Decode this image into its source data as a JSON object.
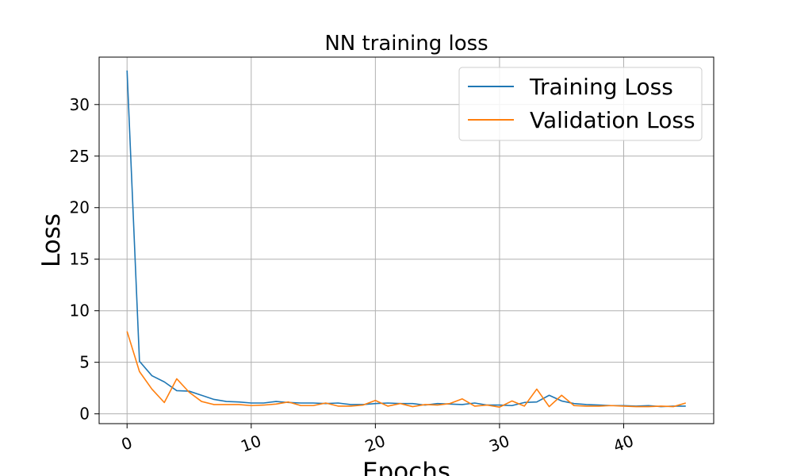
{
  "chart_data": {
    "type": "line",
    "title": "NN training loss",
    "xlabel": "Epochs",
    "ylabel": "Loss",
    "xlim": [
      -2.25,
      47.25
    ],
    "ylim": [
      -0.95,
      34.6
    ],
    "xticks": [
      0,
      10,
      20,
      30,
      40
    ],
    "yticks": [
      0,
      5,
      10,
      15,
      20,
      25,
      30
    ],
    "grid": true,
    "legend_position": "top-right",
    "x": [
      0,
      1,
      2,
      3,
      4,
      5,
      6,
      7,
      8,
      9,
      10,
      11,
      12,
      13,
      14,
      15,
      16,
      17,
      18,
      19,
      20,
      21,
      22,
      23,
      24,
      25,
      26,
      27,
      28,
      29,
      30,
      31,
      32,
      33,
      34,
      35,
      36,
      37,
      38,
      39,
      40,
      41,
      42,
      43,
      44,
      45
    ],
    "series": [
      {
        "name": "Training Loss",
        "color": "#1f77b4",
        "values": [
          33.3,
          5.1,
          3.7,
          3.1,
          2.25,
          2.2,
          1.8,
          1.4,
          1.2,
          1.15,
          1.05,
          1.05,
          1.2,
          1.1,
          1.05,
          1.05,
          1.0,
          1.05,
          0.9,
          0.9,
          1.0,
          1.05,
          1.0,
          1.0,
          0.85,
          1.0,
          0.95,
          0.9,
          1.05,
          0.85,
          0.85,
          0.8,
          1.1,
          1.15,
          1.8,
          1.25,
          1.0,
          0.9,
          0.85,
          0.8,
          0.8,
          0.75,
          0.8,
          0.7,
          0.75,
          0.75
        ]
      },
      {
        "name": "Validation Loss",
        "color": "#ff7f0e",
        "values": [
          8.0,
          4.1,
          2.4,
          1.1,
          3.4,
          2.1,
          1.2,
          0.9,
          0.9,
          0.9,
          0.8,
          0.85,
          0.95,
          1.15,
          0.8,
          0.8,
          1.05,
          0.75,
          0.75,
          0.85,
          1.3,
          0.75,
          1.0,
          0.7,
          0.9,
          0.85,
          1.0,
          1.45,
          0.75,
          0.85,
          0.65,
          1.25,
          0.75,
          2.4,
          0.7,
          1.8,
          0.8,
          0.75,
          0.75,
          0.8,
          0.75,
          0.7,
          0.7,
          0.75,
          0.7,
          1.05
        ]
      }
    ]
  }
}
